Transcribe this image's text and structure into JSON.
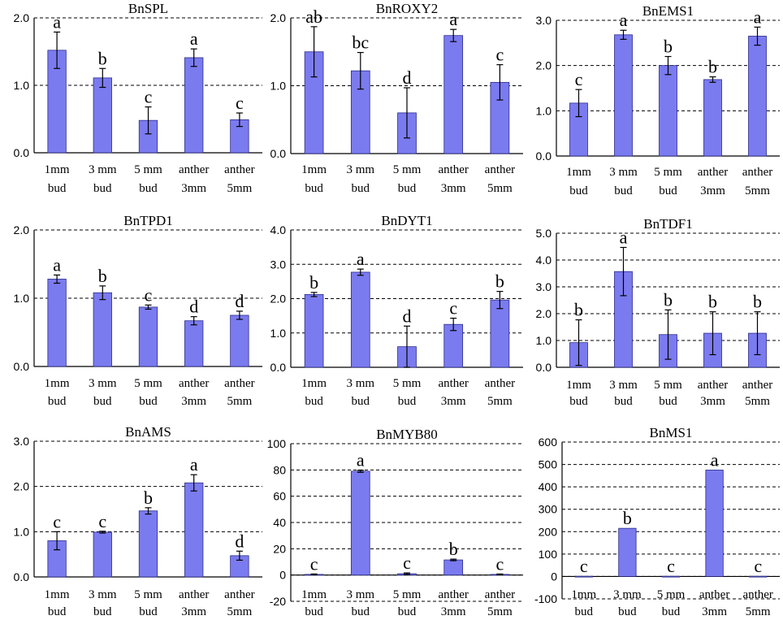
{
  "chart_data": [
    {
      "type": "bar",
      "title": "BnSPL",
      "categories": [
        "1mm bud",
        "3 mm bud",
        "5 mm bud",
        "anther 3mm",
        "anther 5mm"
      ],
      "values": [
        1.52,
        1.11,
        0.48,
        1.41,
        0.49
      ],
      "errors": [
        0.27,
        0.14,
        0.2,
        0.13,
        0.1
      ],
      "letters": [
        "a",
        "b",
        "c",
        "a",
        "c"
      ],
      "ylim": [
        0,
        2
      ],
      "yticks": [
        "0.0",
        "1.0",
        "2.0"
      ]
    },
    {
      "type": "bar",
      "title": "BnROXY2",
      "categories": [
        "1mm bud",
        "3 mm bud",
        "5 mm bud",
        "anther 3mm",
        "anther 5mm"
      ],
      "values": [
        1.5,
        1.22,
        0.6,
        1.74,
        1.05
      ],
      "errors": [
        0.37,
        0.27,
        0.37,
        0.09,
        0.26
      ],
      "letters": [
        "ab",
        "bc",
        "d",
        "a",
        "c"
      ],
      "ylim": [
        0,
        2
      ],
      "yticks": [
        "0.0",
        "1.0",
        "2.0"
      ]
    },
    {
      "type": "bar",
      "title": "BnEMS1",
      "categories": [
        "1mm bud",
        "3 mm bud",
        "5 mm bud",
        "anther 3mm",
        "anther 5mm"
      ],
      "values": [
        1.17,
        2.68,
        2.0,
        1.69,
        2.65
      ],
      "errors": [
        0.3,
        0.1,
        0.2,
        0.06,
        0.2
      ],
      "letters": [
        "c",
        "a",
        "b",
        "b",
        "a"
      ],
      "ylim": [
        0,
        3
      ],
      "yticks": [
        "0.0",
        "1.0",
        "2.0",
        "3.0"
      ]
    },
    {
      "type": "bar",
      "title": "BnTPD1",
      "categories": [
        "1mm bud",
        "3 mm bud",
        "5 mm bud",
        "anther 3mm",
        "anther 5mm"
      ],
      "values": [
        1.28,
        1.08,
        0.87,
        0.67,
        0.75
      ],
      "errors": [
        0.06,
        0.1,
        0.03,
        0.06,
        0.06
      ],
      "letters": [
        "a",
        "b",
        "c",
        "d",
        "d"
      ],
      "ylim": [
        0,
        2
      ],
      "yticks": [
        "0.0",
        "1.0",
        "2.0"
      ]
    },
    {
      "type": "bar",
      "title": "BnDYT1",
      "categories": [
        "1mm bud",
        "3 mm bud",
        "5 mm bud",
        "anther 3mm",
        "anther 5mm"
      ],
      "values": [
        2.12,
        2.77,
        0.6,
        1.25,
        1.96
      ],
      "errors": [
        0.06,
        0.09,
        0.6,
        0.18,
        0.25
      ],
      "letters": [
        "b",
        "a",
        "d",
        "c",
        "b"
      ],
      "ylim": [
        0,
        4
      ],
      "yticks": [
        "0.0",
        "1.0",
        "2.0",
        "3.0",
        "4.0"
      ]
    },
    {
      "type": "bar",
      "title": "BnTDF1",
      "categories": [
        "1mm bud",
        "3 mm bud",
        "5 mm bud",
        "anther 3mm",
        "anther 5mm"
      ],
      "values": [
        0.92,
        3.57,
        1.22,
        1.27,
        1.27
      ],
      "errors": [
        0.85,
        0.9,
        0.92,
        0.8,
        0.8
      ],
      "letters": [
        "b",
        "a",
        "b",
        "b",
        "b"
      ],
      "ylim": [
        0,
        5
      ],
      "yticks": [
        "0.0",
        "1.0",
        "2.0",
        "3.0",
        "4.0",
        "5.0"
      ]
    },
    {
      "type": "bar",
      "title": "BnAMS",
      "categories": [
        "1mm bud",
        "3 mm bud",
        "5 mm bud",
        "anther 3mm",
        "anther 5mm"
      ],
      "values": [
        0.8,
        0.99,
        1.46,
        2.08,
        0.47
      ],
      "errors": [
        0.2,
        0.02,
        0.07,
        0.18,
        0.1
      ],
      "letters": [
        "c",
        "c",
        "b",
        "a",
        "d"
      ],
      "ylim": [
        0,
        3
      ],
      "yticks": [
        "0.0",
        "1.0",
        "2.0",
        "3.0"
      ]
    },
    {
      "type": "bar",
      "title": "BnMYB80",
      "categories": [
        "1mm bud",
        "3 mm bud",
        "5 mm bud",
        "anther 3mm",
        "anther 5mm"
      ],
      "values": [
        0.5,
        79,
        1,
        11.5,
        0.5
      ],
      "errors": [
        0.3,
        0.8,
        0.6,
        0.6,
        0.3
      ],
      "letters": [
        "c",
        "a",
        "c",
        "b",
        "c"
      ],
      "ylim": [
        -20,
        100
      ],
      "yticks": [
        "-20",
        "0",
        "20",
        "40",
        "60",
        "80",
        "100"
      ]
    },
    {
      "type": "bar",
      "title": "BnMS1",
      "categories": [
        "1mm bud",
        "3 mm bud",
        "5 mm bud",
        "anther 3mm",
        "anther 5mm"
      ],
      "values": [
        1,
        215,
        1,
        475,
        1
      ],
      "errors": [
        0,
        0,
        0,
        0,
        0
      ],
      "letters": [
        "c",
        "b",
        "c",
        "a",
        "c"
      ],
      "ylim": [
        -100,
        600
      ],
      "yticks": [
        "-100",
        "0",
        "100",
        "200",
        "300",
        "400",
        "500",
        "600"
      ]
    }
  ]
}
